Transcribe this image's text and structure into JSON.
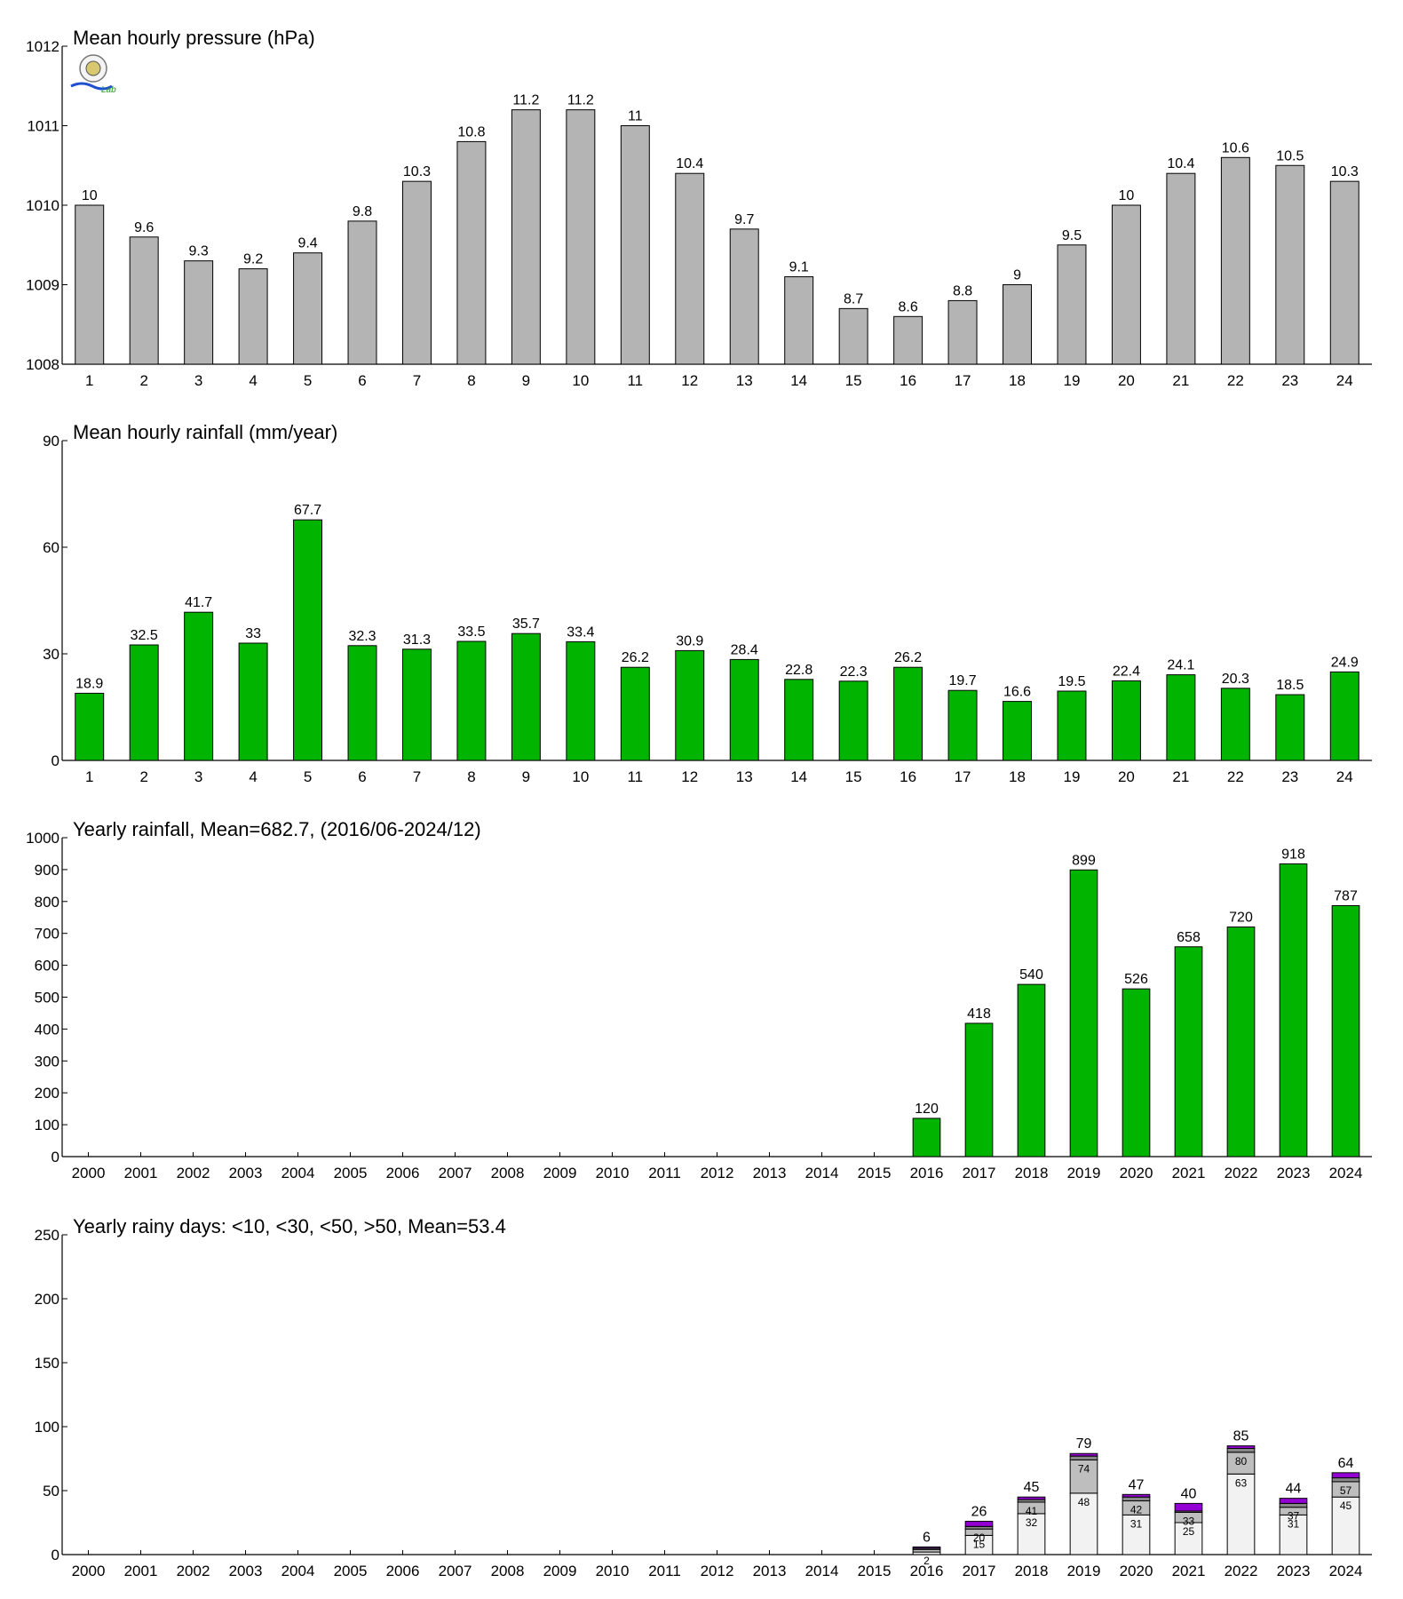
{
  "logo": {
    "text": "Lab"
  },
  "chart_data": [
    {
      "type": "bar",
      "title": "Mean hourly pressure (hPa)",
      "categories": [
        "1",
        "2",
        "3",
        "4",
        "5",
        "6",
        "7",
        "8",
        "9",
        "10",
        "11",
        "12",
        "13",
        "14",
        "15",
        "16",
        "17",
        "18",
        "19",
        "20",
        "21",
        "22",
        "23",
        "24"
      ],
      "values": [
        1010.0,
        1009.6,
        1009.3,
        1009.2,
        1009.4,
        1009.8,
        1010.3,
        1010.8,
        1011.2,
        1011.2,
        1011.0,
        1010.4,
        1009.7,
        1009.1,
        1008.7,
        1008.6,
        1008.8,
        1009.0,
        1009.5,
        1010.0,
        1010.4,
        1010.6,
        1010.5,
        1010.3
      ],
      "data_labels": [
        "10",
        "9.6",
        "9.3",
        "9.2",
        "9.4",
        "9.8",
        "10.3",
        "10.8",
        "11.2",
        "11.2",
        "11",
        "10.4",
        "9.7",
        "9.1",
        "8.7",
        "8.6",
        "8.8",
        "9",
        "9.5",
        "10",
        "10.4",
        "10.6",
        "10.5",
        "10.3"
      ],
      "ylim": [
        1008,
        1012
      ],
      "yticks": [
        1008,
        1009,
        1010,
        1011,
        1012
      ],
      "color": "#b4b4b4"
    },
    {
      "type": "bar",
      "title": "Mean hourly rainfall (mm/year)",
      "categories": [
        "1",
        "2",
        "3",
        "4",
        "5",
        "6",
        "7",
        "8",
        "9",
        "10",
        "11",
        "12",
        "13",
        "14",
        "15",
        "16",
        "17",
        "18",
        "19",
        "20",
        "21",
        "22",
        "23",
        "24"
      ],
      "values": [
        18.9,
        32.5,
        41.7,
        33,
        67.7,
        32.3,
        31.3,
        33.5,
        35.7,
        33.4,
        26.2,
        30.9,
        28.4,
        22.8,
        22.3,
        26.2,
        19.7,
        16.6,
        19.5,
        22.4,
        24.1,
        20.3,
        18.5,
        24.9
      ],
      "data_labels": [
        "18.9",
        "32.5",
        "41.7",
        "33",
        "67.7",
        "32.3",
        "31.3",
        "33.5",
        "35.7",
        "33.4",
        "26.2",
        "30.9",
        "28.4",
        "22.8",
        "22.3",
        "26.2",
        "19.7",
        "16.6",
        "19.5",
        "22.4",
        "24.1",
        "20.3",
        "18.5",
        "24.9"
      ],
      "ylim": [
        0,
        90
      ],
      "yticks": [
        0,
        30,
        60,
        90
      ],
      "color": "#00b400"
    },
    {
      "type": "bar",
      "title": "Yearly rainfall, Mean=682.7, (2016/06-2024/12)",
      "categories": [
        "2000",
        "2001",
        "2002",
        "2003",
        "2004",
        "2005",
        "2006",
        "2007",
        "2008",
        "2009",
        "2010",
        "2011",
        "2012",
        "2013",
        "2014",
        "2015",
        "2016",
        "2017",
        "2018",
        "2019",
        "2020",
        "2021",
        "2022",
        "2023",
        "2024"
      ],
      "values": [
        null,
        null,
        null,
        null,
        null,
        null,
        null,
        null,
        null,
        null,
        null,
        null,
        null,
        null,
        null,
        null,
        120,
        418,
        540,
        899,
        526,
        658,
        720,
        918,
        787
      ],
      "data_labels": [
        "",
        "",
        "",
        "",
        "",
        "",
        "",
        "",
        "",
        "",
        "",
        "",
        "",
        "",
        "",
        "",
        "120",
        "418",
        "540",
        "899",
        "526",
        "658",
        "720",
        "918",
        "787"
      ],
      "ylim": [
        0,
        1000
      ],
      "yticks": [
        0,
        100,
        200,
        300,
        400,
        500,
        600,
        700,
        800,
        900,
        1000
      ],
      "color": "#00b400"
    },
    {
      "type": "bar",
      "stacked": true,
      "title": "Yearly rainy days: <10, <30, <50, >50, Mean=53.4",
      "categories": [
        "2000",
        "2001",
        "2002",
        "2003",
        "2004",
        "2005",
        "2006",
        "2007",
        "2008",
        "2009",
        "2010",
        "2011",
        "2012",
        "2013",
        "2014",
        "2015",
        "2016",
        "2017",
        "2018",
        "2019",
        "2020",
        "2021",
        "2022",
        "2023",
        "2024"
      ],
      "cumulative": {
        "lt10": [
          null,
          null,
          null,
          null,
          null,
          null,
          null,
          null,
          null,
          null,
          null,
          null,
          null,
          null,
          null,
          null,
          2,
          15,
          32,
          48,
          31,
          25,
          63,
          31,
          45
        ],
        "lt30": [
          null,
          null,
          null,
          null,
          null,
          null,
          null,
          null,
          null,
          null,
          null,
          null,
          null,
          null,
          null,
          null,
          4,
          20,
          41,
          74,
          42,
          33,
          80,
          37,
          57
        ],
        "lt50": [
          null,
          null,
          null,
          null,
          null,
          null,
          null,
          null,
          null,
          null,
          null,
          null,
          null,
          null,
          null,
          null,
          5,
          22,
          43,
          77,
          45,
          34,
          83,
          40,
          60
        ],
        "total": [
          null,
          null,
          null,
          null,
          null,
          null,
          null,
          null,
          null,
          null,
          null,
          null,
          null,
          null,
          null,
          null,
          6,
          26,
          45,
          79,
          47,
          40,
          85,
          44,
          64
        ]
      },
      "segment_labels": {
        "lt10": [
          "",
          "",
          "",
          "",
          "",
          "",
          "",
          "",
          "",
          "",
          "",
          "",
          "",
          "",
          "",
          "",
          "2",
          "15",
          "32",
          "48",
          "31",
          "25",
          "63",
          "31",
          "45"
        ],
        "lt30": [
          "",
          "",
          "",
          "",
          "",
          "",
          "",
          "",
          "",
          "",
          "",
          "",
          "",
          "",
          "",
          "",
          "",
          "20",
          "41",
          "74",
          "42",
          "33",
          "80",
          "37",
          "57"
        ]
      },
      "total_labels": [
        "",
        "",
        "",
        "",
        "",
        "",
        "",
        "",
        "",
        "",
        "",
        "",
        "",
        "",
        "",
        "",
        "6",
        "26",
        "45",
        "79",
        "47",
        "40",
        "85",
        "44",
        "64"
      ],
      "ylim": [
        0,
        250
      ],
      "yticks": [
        0,
        50,
        100,
        150,
        200,
        250
      ],
      "colors": {
        "lt10": "#f2f2f2",
        "lt30": "#bebebe",
        "lt50": "#888888",
        "gt50": "#9400d3"
      }
    }
  ]
}
